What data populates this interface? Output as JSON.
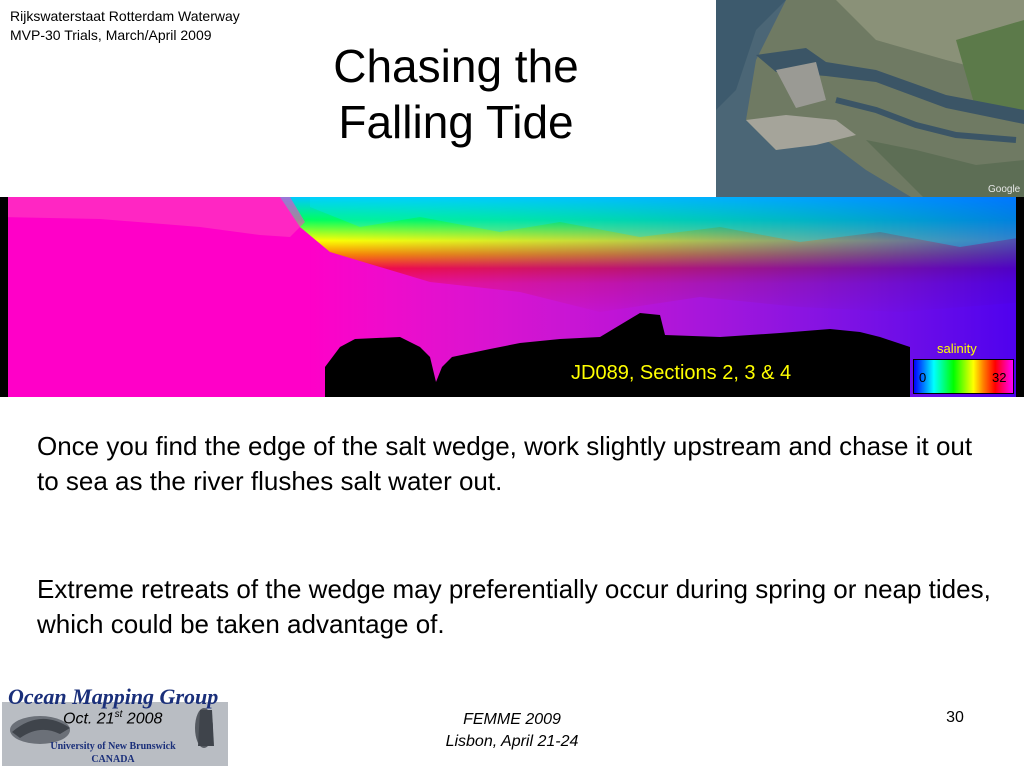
{
  "header": {
    "line1": "Rijkswaterstaat Rotterdam Waterway",
    "line2": "MVP-30 Trials, March/April 2009"
  },
  "title": {
    "line1": "Chasing the",
    "line2": "Falling Tide"
  },
  "satellite": {
    "watermark": "Google"
  },
  "section_plot": {
    "caption": "JD089, Sections 2, 3 & 4",
    "colorbar": {
      "label": "salinity",
      "min": "0",
      "max": "32",
      "colors": [
        "#0000ff",
        "#00ffff",
        "#00ff00",
        "#ffff00",
        "#ff8000",
        "#ff0000",
        "#ff00ff"
      ]
    }
  },
  "body": {
    "paragraph1": "Once you find the edge of the salt wedge, work slightly upstream and chase it out to sea as the river flushes salt water out.",
    "paragraph2": "Extreme retreats of the wedge may preferentially occur during spring or neap tides, which could be taken advantage of."
  },
  "footer": {
    "logo_title": "Ocean Mapping Group",
    "date_prefix": "Oct. 21",
    "date_sup": "st",
    "date_suffix": " 2008",
    "university_line1": "University of New Brunswick",
    "university_line2": "CANADA",
    "event_line1": "FEMME 2009",
    "event_line2": "Lisbon, April 21-24",
    "page_number": "30"
  }
}
